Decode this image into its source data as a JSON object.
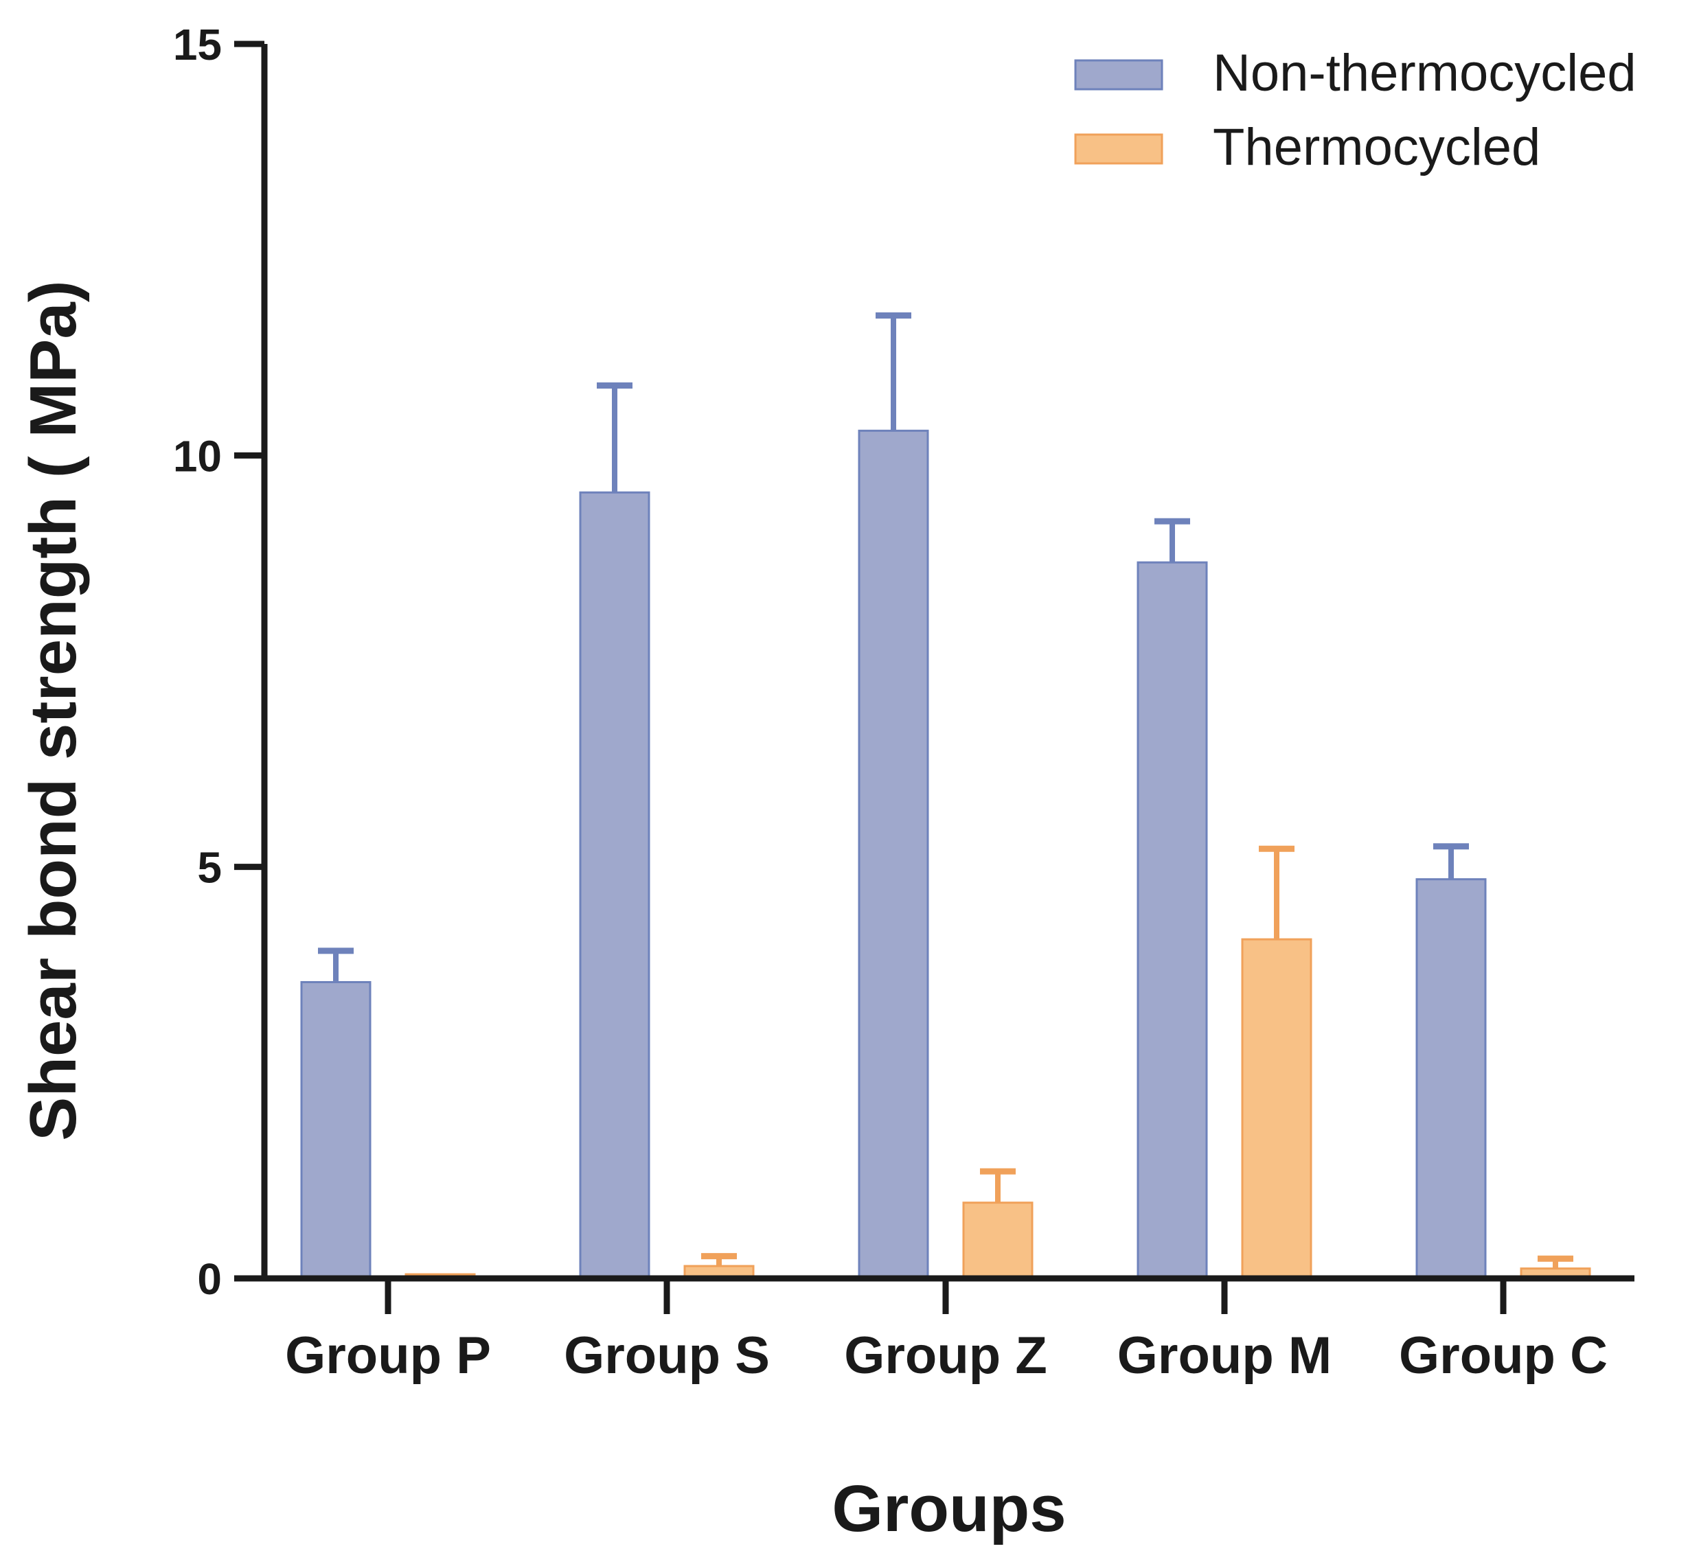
{
  "chart_data": {
    "type": "bar",
    "xlabel": "Groups",
    "ylabel": "Shear bond strength ( MPa)",
    "ylim": [
      0,
      15
    ],
    "yticks": [
      0,
      5,
      10,
      15
    ],
    "categories": [
      "Group P",
      "Group S",
      "Group Z",
      "Group M",
      "Group C"
    ],
    "legend_position": "top-right",
    "error_bars": true,
    "series": [
      {
        "name": "Non-thermocycled",
        "color": "#9fa8cc",
        "stroke": "#6e82bb",
        "error_color": "#6e82bb",
        "values": [
          3.6,
          9.55,
          10.3,
          8.7,
          4.85
        ],
        "errors": [
          0.38,
          1.3,
          1.4,
          0.5,
          0.4
        ]
      },
      {
        "name": "Thermocycled",
        "color": "#f8c186",
        "stroke": "#f0a15a",
        "error_color": "#f0a15a",
        "values": [
          0.03,
          0.15,
          0.92,
          4.12,
          0.12
        ],
        "errors": [
          0.0,
          0.12,
          0.38,
          1.1,
          0.12
        ]
      }
    ]
  }
}
